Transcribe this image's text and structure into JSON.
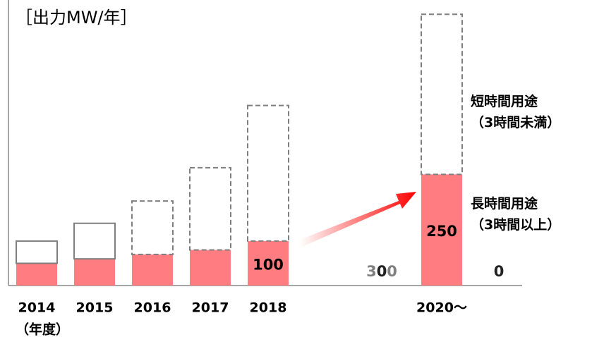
{
  "chart_data": {
    "type": "stacked_bar",
    "title": "［出力MW/年］",
    "x_label": "（年度）",
    "categories": [
      "2014",
      "2015",
      "2016",
      "2017",
      "2018",
      null,
      null,
      "2020〜"
    ],
    "series": [
      {
        "name": "長時間用途\n（3時間以上）",
        "color": "#ff7c80",
        "values": [
          50,
          60,
          70,
          80,
          100,
          null,
          null,
          250
        ],
        "value_labels": [
          null,
          null,
          null,
          null,
          "100",
          null,
          null,
          "250"
        ]
      },
      {
        "name": "短時間用途\n（3時間未満）",
        "color": "#7f7f7f",
        "values": [
          50,
          80,
          120,
          185,
          305,
          null,
          null,
          360
        ],
        "dashed": [
          false,
          false,
          true,
          true,
          true,
          null,
          null,
          true
        ]
      }
    ],
    "annotations": [
      {
        "text": "300",
        "color": "#808080"
      },
      {
        "text": "0",
        "color": "#222222"
      },
      {
        "text": "0",
        "color": "#222222"
      }
    ],
    "ylim": [
      0,
      620
    ]
  }
}
